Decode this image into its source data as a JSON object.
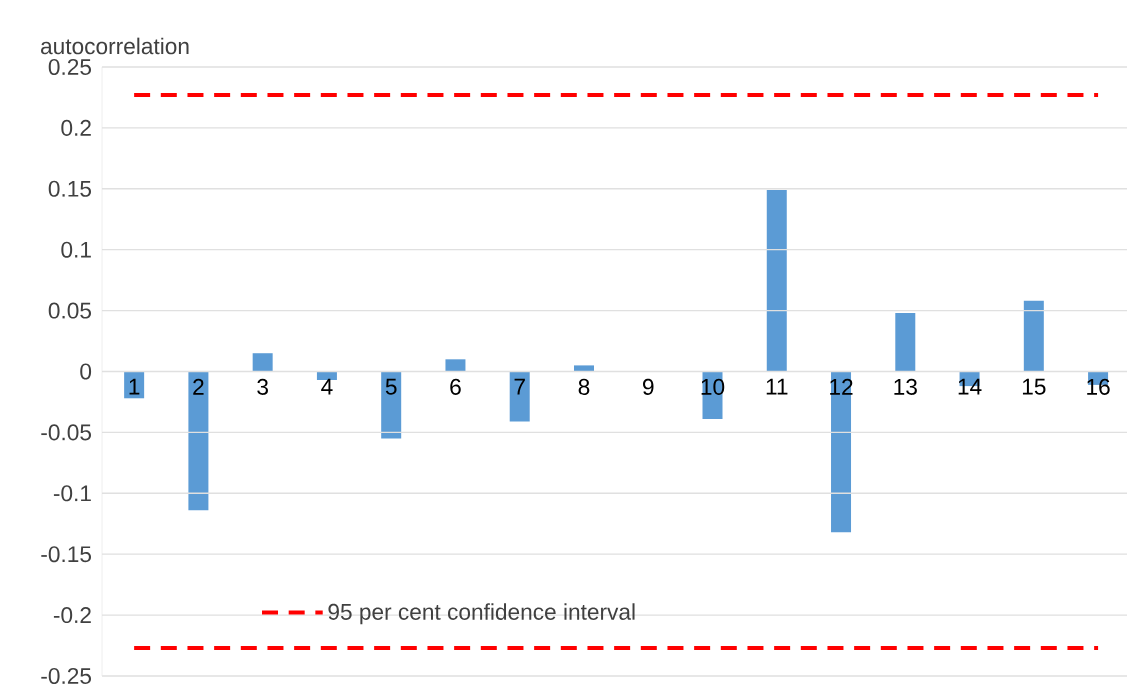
{
  "chart_data": {
    "type": "bar",
    "ylabel": "autocorrelation",
    "categories": [
      "1",
      "2",
      "3",
      "4",
      "5",
      "6",
      "7",
      "8",
      "9",
      "10",
      "11",
      "12",
      "13",
      "14",
      "15",
      "16"
    ],
    "values": [
      -0.022,
      -0.114,
      0.015,
      -0.007,
      -0.055,
      0.01,
      -0.041,
      0.005,
      0,
      -0.039,
      0.149,
      -0.132,
      0.048,
      -0.012,
      0.058,
      -0.011
    ],
    "color": "#5b9bd5",
    "ylim": [
      -0.25,
      0.25
    ],
    "yticks": [
      -0.25,
      -0.2,
      -0.15,
      -0.1,
      -0.05,
      0,
      0.05,
      0.1,
      0.15,
      0.2,
      0.25
    ],
    "grid": "y",
    "legend": "bottom left",
    "ref_lines": [
      {
        "axis": "y",
        "value": 0.227,
        "label": "95 per cent confidence interval",
        "color": "#ff0000",
        "line_style": "dashed"
      },
      {
        "axis": "y",
        "value": -0.227,
        "color": "#ff0000",
        "line_style": "dashed"
      }
    ]
  }
}
